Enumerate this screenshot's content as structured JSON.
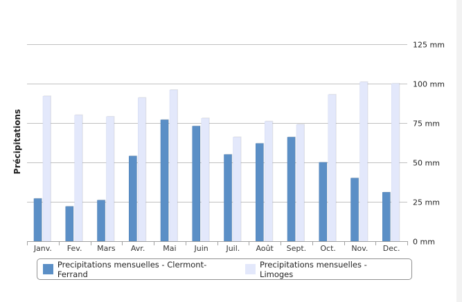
{
  "chart_data": {
    "type": "bar",
    "categories": [
      "Janv.",
      "Fev.",
      "Mars",
      "Avr.",
      "Mai",
      "Juin",
      "Juil.",
      "Août",
      "Sept.",
      "Oct.",
      "Nov.",
      "Dec."
    ],
    "series": [
      {
        "name": "Precipitations mensuelles - Clermont-Ferrand",
        "color": "#5b8fc6",
        "values": [
          27,
          22,
          26,
          54,
          77,
          73,
          55,
          62,
          66,
          50,
          40,
          31
        ]
      },
      {
        "name": "Precipitations mensuelles - Limoges",
        "color": "#e3e8fb",
        "values": [
          92,
          80,
          79,
          91,
          96,
          78,
          66,
          76,
          74,
          93,
          101,
          100
        ]
      }
    ],
    "ylabel": "Précipitations",
    "ylim": [
      0,
      125
    ],
    "ytick_labels": [
      "0 mm",
      "25 mm",
      "50 mm",
      "75 mm",
      "100 mm",
      "125 mm"
    ],
    "yticks": [
      0,
      25,
      50,
      75,
      100,
      125
    ],
    "y_axis_side": "right",
    "grid": true,
    "legend_position": "bottom"
  }
}
